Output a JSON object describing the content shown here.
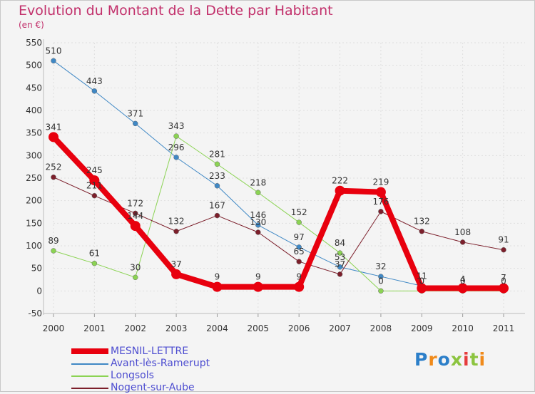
{
  "title": "Evolution du Montant de la Dette par Habitant",
  "subtitle": "(en €)",
  "brand": {
    "text": "Proxiti",
    "letter_colors": [
      "#2c7fc9",
      "#f08a1a",
      "#2c7fc9",
      "#8cc43f",
      "#e63c3c",
      "#8cc43f",
      "#f08a1a"
    ]
  },
  "chart_data": {
    "type": "line",
    "x": [
      "2000",
      "2001",
      "2002",
      "2003",
      "2004",
      "2005",
      "2006",
      "2007",
      "2008",
      "2009",
      "2010",
      "2011"
    ],
    "ylim": [
      -50,
      550
    ],
    "yticks": [
      "-50",
      "0",
      "50",
      "100",
      "150",
      "200",
      "250",
      "300",
      "350",
      "400",
      "450",
      "500",
      "550"
    ],
    "grid": true,
    "legend_position": "bottom-left",
    "series": [
      {
        "name": "MESNIL-LETTRE",
        "color": "#e8000e",
        "emphasis": true,
        "values": [
          341,
          245,
          144,
          37,
          9,
          9,
          9,
          222,
          219,
          6,
          6,
          6
        ],
        "labels": [
          "341",
          "245",
          "144",
          "37",
          "9",
          "9",
          "9",
          "222",
          "219",
          "",
          "",
          ""
        ]
      },
      {
        "name": "Avant-lès-Ramerupt",
        "color": "#3f88c5",
        "values": [
          510,
          443,
          371,
          296,
          233,
          146,
          97,
          53,
          32,
          11,
          4,
          7
        ],
        "labels": [
          "510",
          "443",
          "371",
          "296",
          "233",
          "146",
          "97",
          "53",
          "32",
          "11",
          "4",
          "7"
        ]
      },
      {
        "name": "Longsols",
        "color": "#8bd353",
        "values": [
          89,
          61,
          30,
          343,
          281,
          218,
          152,
          84,
          0,
          0,
          0,
          0
        ],
        "labels": [
          "89",
          "61",
          "30",
          "343",
          "281",
          "218",
          "152",
          "84",
          "0",
          "0",
          "0",
          "0"
        ]
      },
      {
        "name": "Nogent-sur-Aube",
        "color": "#7c1f2b",
        "values": [
          252,
          211,
          172,
          132,
          167,
          130,
          65,
          37,
          176,
          132,
          108,
          91
        ],
        "labels": [
          "252",
          "211",
          "172",
          "132",
          "167",
          "130",
          "65",
          "37",
          "176",
          "132",
          "108",
          "91"
        ]
      }
    ]
  }
}
